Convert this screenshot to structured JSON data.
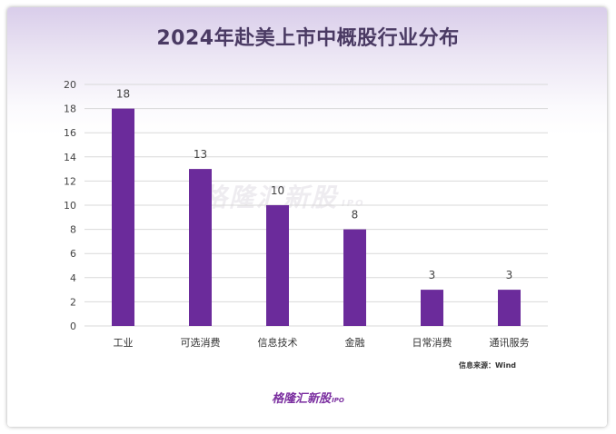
{
  "title": "2024年赴美上市中概股行业分布",
  "source": "信息来源：Wind",
  "brand": "格隆汇新股",
  "brand_sub": "IPO",
  "watermark": "格隆汇新股",
  "watermark_sub": "IPO",
  "colors": {
    "bar": "#6b2b9b",
    "grid": "#d9d9d9",
    "title": "#4a3a63"
  },
  "chart_data": {
    "type": "bar",
    "title": "2024年赴美上市中概股行业分布",
    "categories": [
      "工业",
      "可选消费",
      "信息技术",
      "金融",
      "日常消费",
      "通讯服务"
    ],
    "values": [
      18,
      13,
      10,
      8,
      3,
      3
    ],
    "ylim": [
      0,
      20
    ],
    "yticks": [
      0,
      2,
      4,
      6,
      8,
      10,
      12,
      14,
      16,
      18,
      20
    ],
    "xlabel": "",
    "ylabel": "",
    "grid": true,
    "legend": "none",
    "data_labels": true
  }
}
